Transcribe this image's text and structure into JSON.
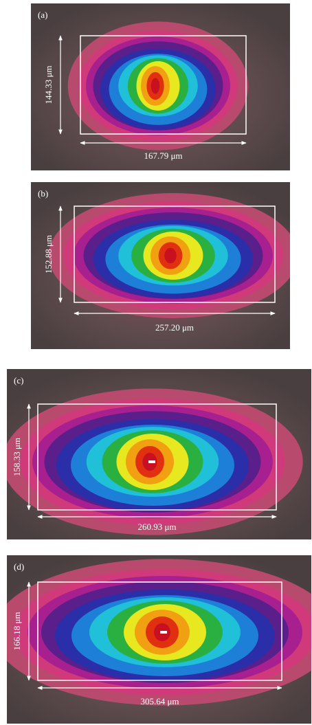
{
  "panels": [
    {
      "label": "(a)",
      "height": "144.33 μm",
      "width": "167.79 μm"
    },
    {
      "label": "(b)",
      "height": "152.88 μm",
      "width": "257.20 μm"
    },
    {
      "label": "(c)",
      "height": "158.33 μm",
      "width": "260.93 μm"
    },
    {
      "label": "(d)",
      "height": "166.18 μm",
      "width": "305.64 μm"
    }
  ]
}
